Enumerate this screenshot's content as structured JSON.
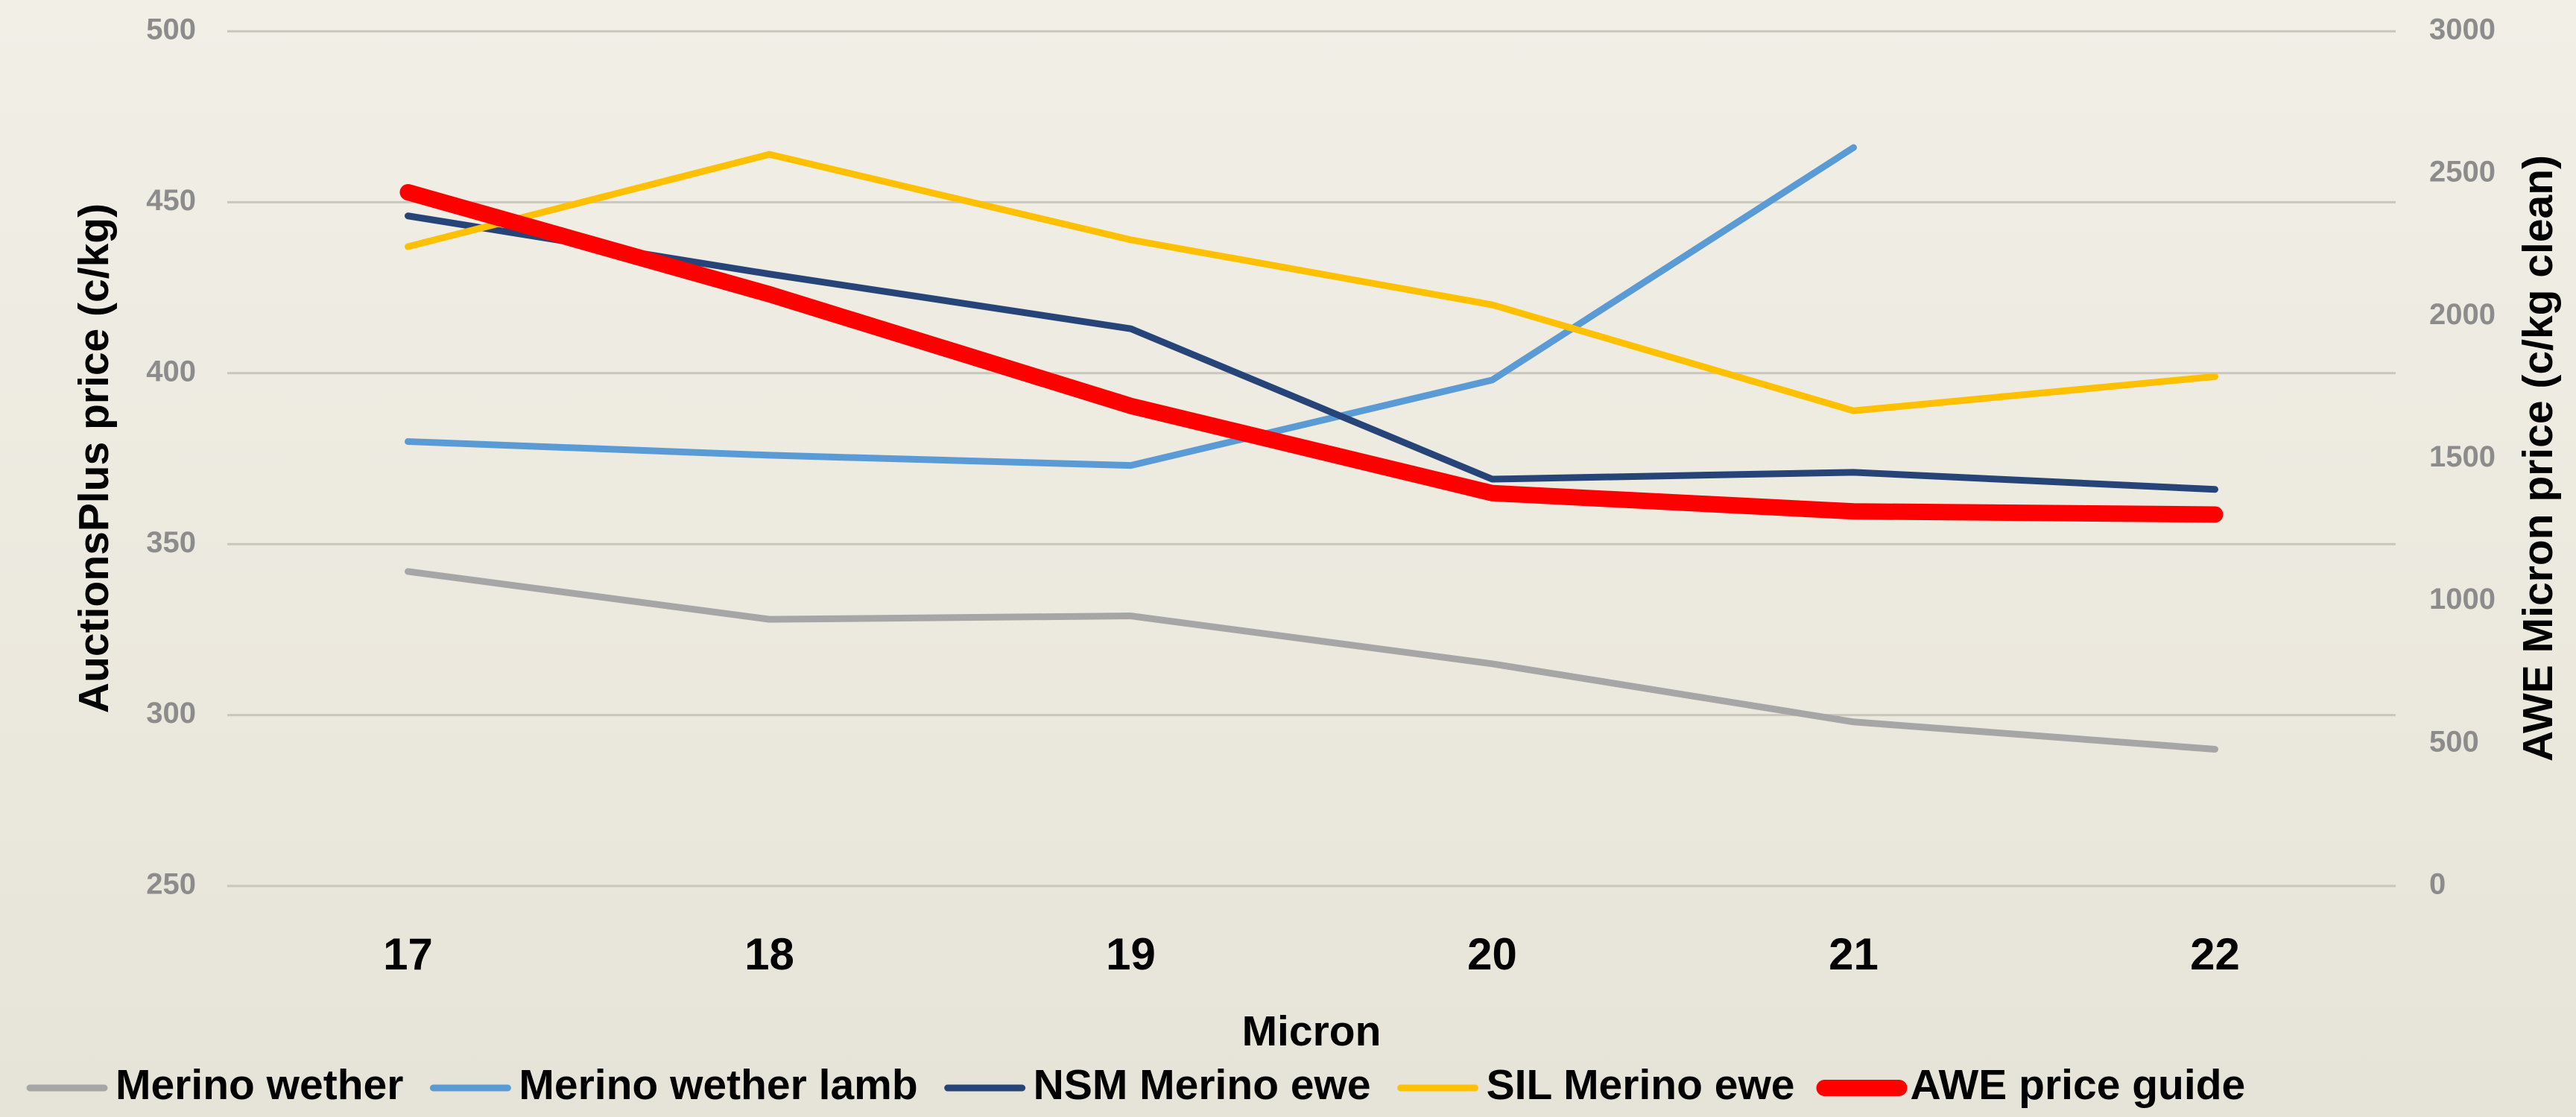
{
  "chart_data": {
    "type": "line",
    "x_label": "Micron",
    "y_label": "AuctionsPlus price (c/kg)",
    "y2_label": "AWE Micron price (c/kg clean)",
    "categories": [
      "17",
      "18",
      "19",
      "20",
      "21",
      "22"
    ],
    "series": [
      {
        "name": "Merino wether",
        "color": "#a6a6a6",
        "width": 9,
        "values": [
          342,
          328,
          329,
          315,
          298,
          290
        ]
      },
      {
        "name": "Merino wether lamb",
        "color": "#5b9bd5",
        "width": 9,
        "values": [
          380,
          376,
          373,
          398,
          466,
          null
        ]
      },
      {
        "name": "NSM Merino ewe",
        "color": "#264478",
        "width": 9,
        "values": [
          446,
          429,
          413,
          369,
          371,
          366
        ]
      },
      {
        "name": "SIL Merino ewe",
        "color": "#ffc000",
        "width": 9,
        "values": [
          437,
          464,
          439,
          420,
          389,
          399
        ]
      },
      {
        "name": "AWE price guide",
        "color": "#ff0000",
        "width": 22,
        "axis": "y2",
        "values": [
          2435,
          2077,
          1685,
          1379,
          1315,
          1304
        ]
      }
    ],
    "ylim": [
      250,
      500
    ],
    "yticks": [
      250,
      300,
      350,
      400,
      450,
      500
    ],
    "y2lim": [
      0,
      3000
    ],
    "y2ticks": [
      0,
      500,
      1000,
      1500,
      2000,
      2500,
      3000
    ],
    "grid": true,
    "legend": "bottom"
  }
}
